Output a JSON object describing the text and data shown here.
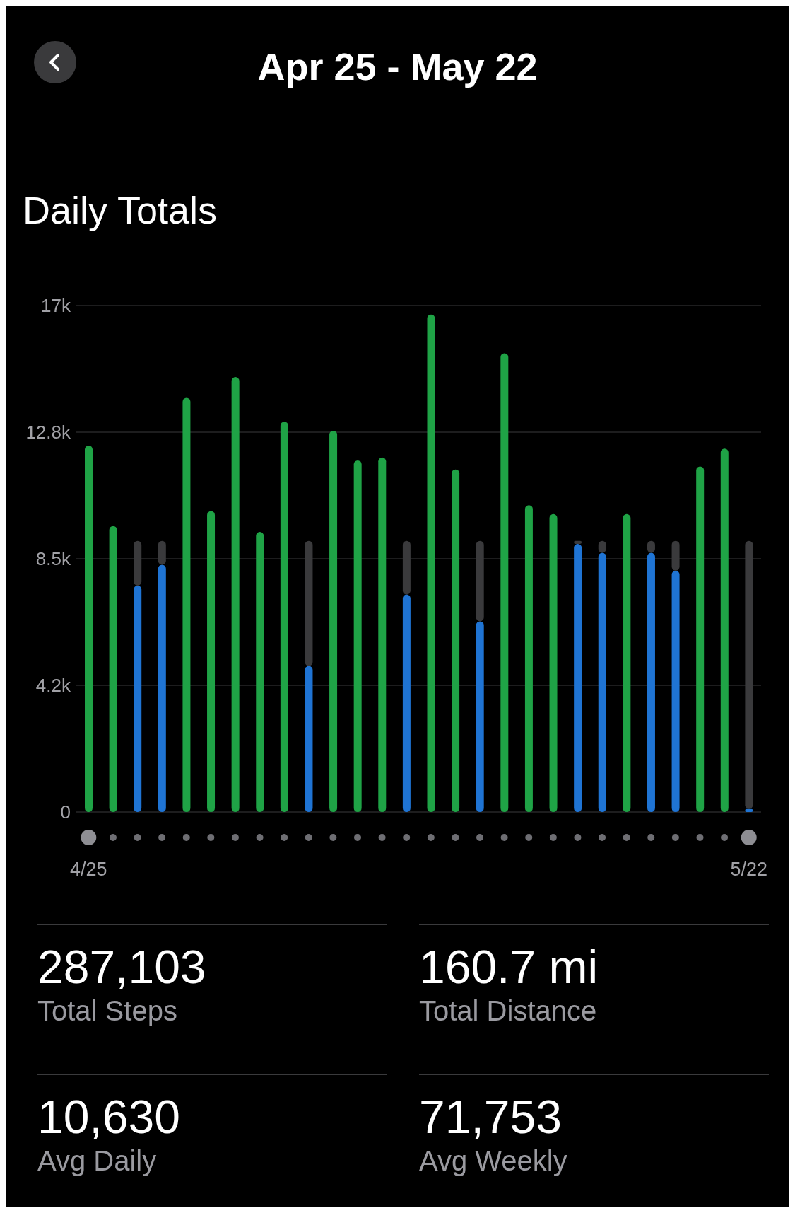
{
  "chart_data": {
    "type": "bar",
    "title": "Apr 25 - May 22",
    "subtitle": "Daily Totals",
    "categories": [
      "4/25",
      null,
      null,
      null,
      null,
      null,
      null,
      null,
      null,
      null,
      null,
      null,
      null,
      null,
      null,
      null,
      null,
      null,
      null,
      null,
      null,
      null,
      null,
      null,
      null,
      null,
      null,
      "5/22"
    ],
    "stacked": true,
    "series": [
      {
        "color": "#1fa346",
        "colors": [
          "#1fa346",
          "#1fa346",
          "#1f74d4",
          "#1f74d4",
          "#1fa346",
          "#1fa346",
          "#1fa346",
          "#1fa346",
          "#1fa346",
          "#1f74d4",
          "#1fa346",
          "#1fa346",
          "#1fa346",
          "#1f74d4",
          "#1fa346",
          "#1fa346",
          "#1f74d4",
          "#1fa346",
          "#1fa346",
          "#1fa346",
          "#1f74d4",
          "#1f74d4",
          "#1fa346",
          "#1f74d4",
          "#1f74d4",
          "#1fa346",
          "#1fa346",
          "#1f74d4"
        ],
        "values": [
          12300,
          9600,
          7600,
          8300,
          13900,
          10100,
          14600,
          9400,
          13100,
          4900,
          12800,
          11800,
          11900,
          7300,
          16700,
          11500,
          6400,
          15400,
          10300,
          10000,
          9000,
          8700,
          10000,
          8700,
          8100,
          11600,
          12200,
          100
        ]
      },
      {
        "color": "#3a3a3c",
        "values": [
          null,
          null,
          1500,
          800,
          null,
          null,
          null,
          null,
          null,
          4200,
          null,
          null,
          null,
          1800,
          null,
          null,
          2700,
          null,
          null,
          null,
          100,
          400,
          null,
          400,
          1000,
          null,
          null,
          9000
        ]
      }
    ],
    "ylim": [
      0,
      17000
    ],
    "yticks": [
      0,
      {
        "value": 4250,
        "label": "4.2k"
      },
      {
        "value": 8500,
        "label": "8.5k"
      },
      {
        "value": 12750,
        "label": "12.8k"
      },
      {
        "value": 17000,
        "label": "17k"
      }
    ],
    "grid": "y",
    "annotations": [
      "287,103",
      "Total Steps",
      "160.7 mi",
      "Total Distance",
      "10,630",
      "Avg Daily",
      "71,753",
      "Avg Weekly"
    ]
  }
}
